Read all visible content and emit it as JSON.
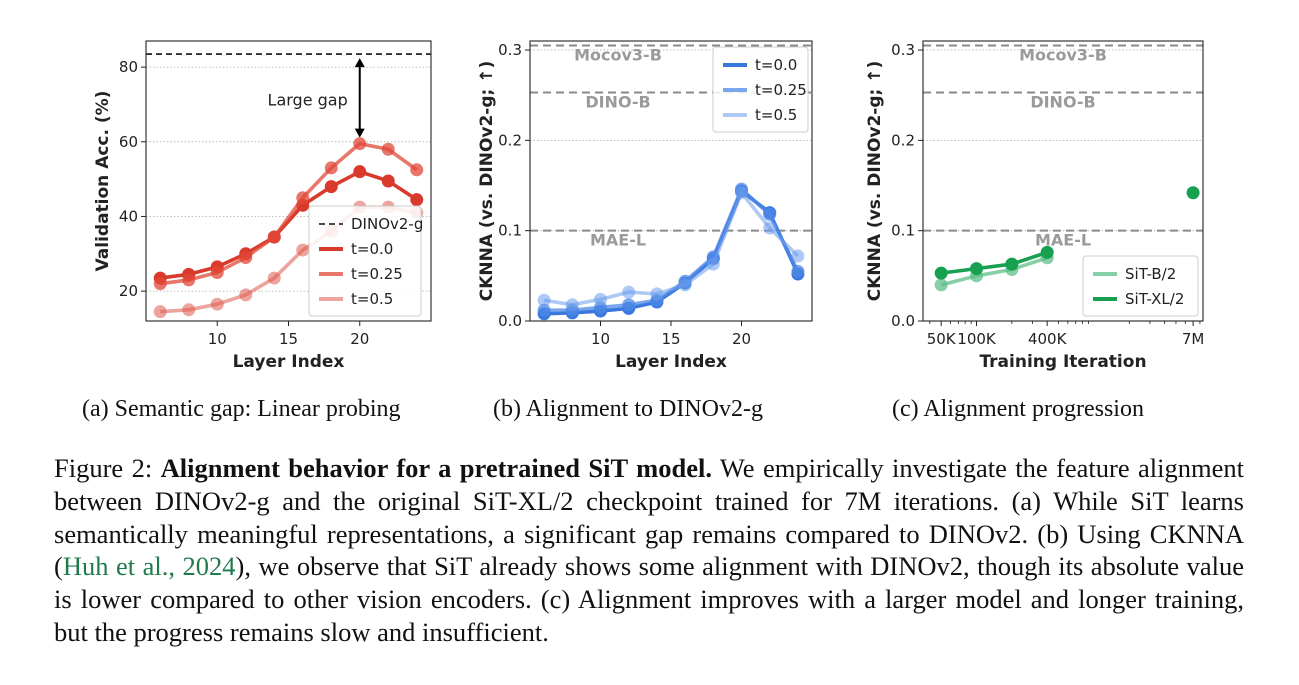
{
  "panels": [
    {
      "subcaption": "(a) Semantic gap: Linear probing",
      "chart_data": {
        "type": "line",
        "xlabel": "Layer Index",
        "ylabel": "Validation Acc. (%)",
        "xlim": [
          5,
          25
        ],
        "ylim": [
          12,
          87
        ],
        "xticks": [
          10,
          15,
          20
        ],
        "yticks": [
          20,
          40,
          60,
          80
        ],
        "grid": "horizontal-dotted",
        "legend": "bottom-right",
        "x": [
          6,
          8,
          10,
          12,
          14,
          16,
          18,
          20,
          22,
          24
        ],
        "series": [
          {
            "name": "t=0.0",
            "color": "#d93a2b",
            "alpha": 1.0,
            "values": [
              23.5,
              24.5,
              26.5,
              30.0,
              34.5,
              43.0,
              48.0,
              52.0,
              49.5,
              44.5
            ]
          },
          {
            "name": "t=0.25",
            "color": "#e0483a",
            "alpha": 0.75,
            "values": [
              22.0,
              23.0,
              25.0,
              29.0,
              34.5,
              45.0,
              53.0,
              59.5,
              58.0,
              52.5
            ]
          },
          {
            "name": "t=0.5",
            "color": "#e05a4e",
            "alpha": 0.55,
            "values": [
              14.5,
              15.0,
              16.5,
              19.0,
              23.5,
              31.0,
              36.0,
              42.5,
              42.5,
              41.0
            ]
          }
        ],
        "reference_lines": [
          {
            "name": "DINOv2-g",
            "value": 83.5
          }
        ],
        "annotation": {
          "text": "Large gap",
          "x": 20,
          "from": 59.5,
          "to": 83.5
        }
      }
    },
    {
      "subcaption": "(b) Alignment to DINOv2-g",
      "chart_data": {
        "type": "line",
        "xlabel": "Layer Index",
        "ylabel": "CKNNA (vs. DINOv2-g; ↑)",
        "xlim": [
          5,
          25
        ],
        "ylim": [
          0.0,
          0.31
        ],
        "xticks": [
          10,
          15,
          20
        ],
        "yticks": [
          0.0,
          0.1,
          0.2,
          0.3
        ],
        "grid": "horizontal-dotted",
        "legend": "top-right",
        "x": [
          6,
          8,
          10,
          12,
          14,
          16,
          18,
          20,
          22,
          24
        ],
        "series": [
          {
            "name": "t=0.0",
            "color": "#3a78de",
            "alpha": 1.0,
            "values": [
              0.008,
              0.009,
              0.011,
              0.014,
              0.021,
              0.042,
              0.069,
              0.144,
              0.12,
              0.052
            ]
          },
          {
            "name": "t=0.25",
            "color": "#4d88e6",
            "alpha": 0.75,
            "values": [
              0.012,
              0.012,
              0.015,
              0.018,
              0.023,
              0.044,
              0.071,
              0.146,
              0.118,
              0.055
            ]
          },
          {
            "name": "t=0.5",
            "color": "#6b9ded",
            "alpha": 0.55,
            "values": [
              0.023,
              0.018,
              0.024,
              0.032,
              0.03,
              0.04,
              0.063,
              0.142,
              0.103,
              0.072
            ]
          }
        ],
        "reference_lines": [
          {
            "name": "Mocov3-B",
            "value": 0.305
          },
          {
            "name": "DINO-B",
            "value": 0.253
          },
          {
            "name": "MAE-L",
            "value": 0.1
          }
        ]
      }
    },
    {
      "subcaption": "(c) Alignment progression",
      "chart_data": {
        "type": "line",
        "xlabel": "Training Iteration",
        "ylabel": "CKNNA (vs. DINOv2-g; ↑)",
        "xscale": "log",
        "xlim": [
          35000,
          8500000
        ],
        "ylim": [
          0.0,
          0.31
        ],
        "xticks": [
          "50K",
          "100K",
          "400K",
          "7M"
        ],
        "yticks": [
          0.0,
          0.1,
          0.2,
          0.3
        ],
        "grid": "horizontal-dotted",
        "legend": "bottom-right",
        "series": [
          {
            "name": "SiT-B/2",
            "color": "#5fbf8a",
            "alpha": 0.75,
            "x": [
              50000,
              100000,
              200000,
              400000
            ],
            "values": [
              0.04,
              0.05,
              0.057,
              0.07
            ]
          },
          {
            "name": "SiT-XL/2",
            "color": "#17a050",
            "alpha": 1.0,
            "x": [
              50000,
              100000,
              200000,
              400000,
              7000000
            ],
            "values": [
              0.053,
              0.058,
              0.063,
              0.076,
              0.142
            ]
          }
        ],
        "reference_lines": [
          {
            "name": "Mocov3-B",
            "value": 0.305
          },
          {
            "name": "DINO-B",
            "value": 0.253
          },
          {
            "name": "MAE-L",
            "value": 0.1
          }
        ]
      }
    }
  ],
  "caption": {
    "figure_label": "Figure 2: ",
    "title": "Alignment behavior for a pretrained SiT model.",
    "text_1": " We empirically investigate the feature alignment between DINOv2-g and the original SiT-XL/2 checkpoint trained for 7M iterations. (a) While SiT learns semantically meaningful representations, a significant gap remains compared to DINOv2. (b) Using CKNNA (",
    "cite_author": "Huh et al.",
    "cite_sep": ", ",
    "cite_year": "2024",
    "text_2": "), we observe that SiT already shows some alignment with DINOv2, though its absolute value is lower compared to other vision encoders. (c) Alignment improves with a larger model and longer training, but the progress remains slow and insufficient."
  }
}
